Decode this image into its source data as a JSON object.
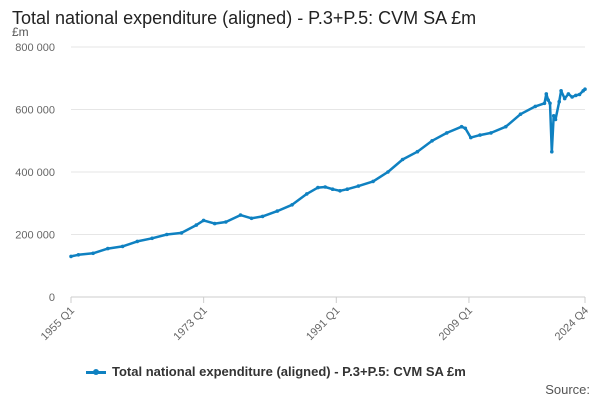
{
  "chart_data": {
    "type": "line",
    "title": "Total national expenditure (aligned) - P.3+P.5: CVM SA £m",
    "ylabel": "£m",
    "ylim": [
      0,
      800000
    ],
    "yticks": [
      0,
      200000,
      400000,
      600000,
      800000
    ],
    "ytick_labels": [
      "0",
      "200 000",
      "400 000",
      "600 000",
      "800 000"
    ],
    "xlim": [
      1955.0,
      2024.75
    ],
    "xticks": [
      1955.0,
      1973.0,
      1991.0,
      2009.0,
      2024.75
    ],
    "xtick_labels": [
      "1955 Q1",
      "1973 Q1",
      "1991 Q1",
      "2009 Q1",
      "2024 Q4"
    ],
    "grid": true,
    "legend_position": "bottom",
    "color": "#0f81c1",
    "series": [
      {
        "name": "Total national expenditure (aligned) - P.3+P.5: CVM SA £m",
        "x": [
          1955.0,
          1956.0,
          1958.0,
          1960.0,
          1962.0,
          1964.0,
          1966.0,
          1968.0,
          1970.0,
          1972.0,
          1973.0,
          1974.5,
          1976.0,
          1978.0,
          1979.5,
          1981.0,
          1983.0,
          1985.0,
          1987.0,
          1988.5,
          1989.5,
          1990.5,
          1991.5,
          1992.5,
          1994.0,
          1996.0,
          1998.0,
          2000.0,
          2002.0,
          2004.0,
          2006.0,
          2008.0,
          2008.5,
          2009.25,
          2010.5,
          2012.0,
          2014.0,
          2016.0,
          2018.0,
          2019.25,
          2019.5,
          2019.75,
          2020.0,
          2020.25,
          2020.5,
          2020.75,
          2021.25,
          2021.5,
          2022.0,
          2022.5,
          2023.0,
          2023.5,
          2024.0,
          2024.5,
          2024.75
        ],
        "values": [
          130000,
          135000,
          140000,
          155000,
          162000,
          178000,
          188000,
          200000,
          205000,
          230000,
          245000,
          235000,
          240000,
          262000,
          252000,
          258000,
          275000,
          295000,
          330000,
          350000,
          352000,
          345000,
          340000,
          345000,
          355000,
          370000,
          400000,
          440000,
          465000,
          500000,
          525000,
          545000,
          540000,
          510000,
          518000,
          525000,
          545000,
          585000,
          610000,
          620000,
          650000,
          630000,
          620000,
          465000,
          580000,
          568000,
          625000,
          660000,
          635000,
          650000,
          640000,
          645000,
          648000,
          660000,
          665000
        ]
      }
    ]
  },
  "legend": {
    "label": "Total national expenditure (aligned) - P.3+P.5: CVM SA £m"
  },
  "source": {
    "label": "Source:"
  }
}
